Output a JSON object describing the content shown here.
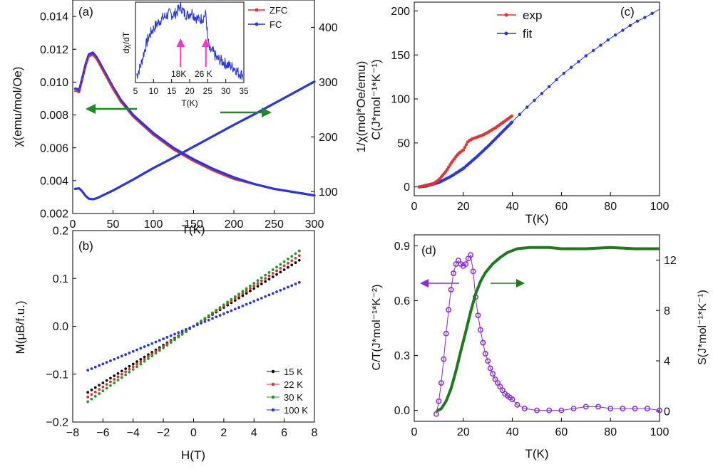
{
  "colors": {
    "zfc": "#e8302f",
    "fc": "#2a36e6",
    "arrow": "#1f8a1f",
    "pink": "#ff33cc",
    "exp": "#e8302f",
    "fit": "#2a36e6",
    "m15": "#111111",
    "m22": "#e8302f",
    "m30": "#1f9a1f",
    "m100": "#2a36e6",
    "ct": "#8a2be2",
    "s": "#1f7a1f"
  },
  "chart_data": [
    {
      "id": "a",
      "type": "line",
      "panel_label": "(a)",
      "xlabel": "T(K)",
      "ylabel": "χ(emu/mol/Oe)",
      "y2label": "1/χ(mol*Oe/emu)",
      "xlim": [
        0,
        300
      ],
      "ylim": [
        0.002,
        0.015
      ],
      "y2lim": [
        60,
        450
      ],
      "xticks": [
        "0",
        "50",
        "100",
        "150",
        "200",
        "250",
        "300"
      ],
      "yticks": [
        "0.002",
        "0.004",
        "0.006",
        "0.008",
        "0.010",
        "0.012",
        "0.014"
      ],
      "y2ticks": [
        "100",
        "200",
        "300",
        "400"
      ],
      "legend": [
        "ZFC",
        "FC"
      ],
      "series": [
        {
          "name": "ZFC",
          "axis": "left",
          "x": [
            5,
            8,
            12,
            16,
            20,
            25,
            30,
            40,
            50,
            60,
            75,
            100,
            125,
            150,
            175,
            200,
            225,
            250,
            275,
            300
          ],
          "values": [
            0.0095,
            0.0094,
            0.0102,
            0.011,
            0.0116,
            0.0117,
            0.0114,
            0.0105,
            0.0096,
            0.0088,
            0.0079,
            0.0068,
            0.0059,
            0.0052,
            0.0046,
            0.0041,
            0.0038,
            0.0035,
            0.0033,
            0.0031
          ]
        },
        {
          "name": "FC",
          "axis": "left",
          "x": [
            5,
            8,
            12,
            16,
            20,
            25,
            30,
            40,
            50,
            60,
            75,
            100,
            125,
            150,
            175,
            200,
            225,
            250,
            275,
            300
          ],
          "values": [
            0.0096,
            0.0095,
            0.0103,
            0.0111,
            0.0117,
            0.0118,
            0.0115,
            0.0106,
            0.0097,
            0.0089,
            0.008,
            0.0069,
            0.006,
            0.0053,
            0.0047,
            0.0042,
            0.0038,
            0.0035,
            0.0033,
            0.0031
          ]
        },
        {
          "name": "1/χ",
          "axis": "right",
          "x": [
            3,
            8,
            12,
            16,
            20,
            25,
            30,
            50,
            75,
            100,
            125,
            150,
            175,
            200,
            225,
            250,
            275,
            300
          ],
          "values": [
            105,
            106,
            100,
            92,
            87,
            86,
            88,
            102,
            122,
            143,
            162,
            182,
            202,
            222,
            241,
            261,
            281,
            301
          ]
        }
      ],
      "annotations": [
        {
          "text": "←",
          "direction": "left",
          "x": 25,
          "y": 0.0074,
          "to_x": 95
        },
        {
          "text": "→",
          "direction": "right",
          "x": 275,
          "y": 0.0074,
          "to_x": 170
        }
      ]
    },
    {
      "id": "a_inset",
      "type": "line",
      "xlabel": "T(K)",
      "ylabel": "dχ/dT",
      "xlim": [
        5,
        35
      ],
      "ylim": [
        0,
        1
      ],
      "xticks": [
        "5",
        "10",
        "15",
        "20",
        "25",
        "30",
        "35"
      ],
      "marker_labels": [
        "18K",
        "26 K"
      ],
      "marker_x": [
        17.5,
        24.5
      ],
      "series": [
        {
          "name": "dχ/dT",
          "x": [
            5.5,
            6.5,
            7.5,
            8.5,
            9.5,
            10.5,
            11.5,
            12.5,
            13.5,
            14.5,
            15.5,
            16.5,
            17.5,
            18.5,
            19.5,
            20.5,
            21.5,
            22.5,
            23.5,
            24.5,
            25.0,
            25.5,
            26.5,
            27.5,
            28.5,
            29.5,
            30.5,
            31.5,
            32.5,
            33.5,
            34.5
          ],
          "values": [
            0.1,
            0.22,
            0.4,
            0.55,
            0.64,
            0.7,
            0.76,
            0.8,
            0.83,
            0.86,
            0.84,
            0.88,
            0.95,
            0.86,
            0.84,
            0.88,
            0.82,
            0.78,
            0.8,
            0.85,
            0.55,
            0.4,
            0.38,
            0.3,
            0.28,
            0.25,
            0.22,
            0.2,
            0.18,
            0.12,
            0.1
          ]
        }
      ]
    },
    {
      "id": "b",
      "type": "scatter",
      "panel_label": "(b)",
      "xlabel": "H(T)",
      "ylabel": "M(μB/f.u.)",
      "xlim": [
        -8,
        8
      ],
      "ylim": [
        -0.2,
        0.2
      ],
      "xticks": [
        "−8",
        "−6",
        "−4",
        "−2",
        "0",
        "2",
        "4",
        "6",
        "8"
      ],
      "yticks": [
        "−0.2",
        "−0.1",
        "0.0",
        "0.1",
        "0.2"
      ],
      "legend": [
        "15 K",
        "22 K",
        "30 K",
        "100 K"
      ],
      "series": [
        {
          "name": "15 K",
          "slope": 0.0197,
          "xrange": [
            -7,
            7
          ]
        },
        {
          "name": "22 K",
          "slope": 0.0211,
          "xrange": [
            -7,
            7
          ]
        },
        {
          "name": "30 K",
          "slope": 0.0225,
          "xrange": [
            -7,
            7
          ]
        },
        {
          "name": "100 K",
          "slope": 0.0131,
          "xrange": [
            -7,
            7
          ]
        }
      ]
    },
    {
      "id": "c",
      "type": "line",
      "panel_label": "(c)",
      "xlabel": "T(K)",
      "ylabel": "C(J*mol⁻¹*K⁻¹)",
      "xlim": [
        0,
        100
      ],
      "ylim": [
        -10,
        210
      ],
      "xticks": [
        "0",
        "20",
        "40",
        "60",
        "80",
        "100"
      ],
      "yticks": [
        "0",
        "50",
        "100",
        "150",
        "200"
      ],
      "legend": [
        "exp",
        "fit"
      ],
      "series": [
        {
          "name": "fit",
          "x": [
            2,
            5,
            10,
            15,
            20,
            25,
            30,
            35,
            40,
            45,
            50,
            55,
            60,
            65,
            70,
            75,
            80,
            85,
            90,
            95,
            100
          ],
          "values": [
            0,
            1,
            5,
            12,
            21,
            33,
            46,
            60,
            74,
            88,
            101,
            114,
            127,
            138,
            149,
            159,
            169,
            178,
            187,
            194,
            202
          ]
        },
        {
          "name": "exp",
          "x": [
            2,
            5,
            8,
            10,
            13,
            15,
            18,
            20,
            22,
            24,
            26,
            28,
            30,
            33,
            36,
            40
          ],
          "values": [
            0,
            2,
            4,
            8,
            18,
            27,
            38,
            42,
            52,
            55,
            57,
            59,
            62,
            67,
            73,
            81
          ]
        }
      ]
    },
    {
      "id": "d",
      "type": "line",
      "panel_label": "(d)",
      "xlabel": "T(K)",
      "ylabel": "C/T(J*mol⁻¹*K⁻²)",
      "y2label": "S(J*mol⁻¹*K⁻¹)",
      "xlim": [
        0,
        100
      ],
      "ylim": [
        -0.06,
        0.96
      ],
      "y2lim": [
        -0.8,
        14
      ],
      "xticks": [
        "0",
        "20",
        "40",
        "60",
        "80",
        "100"
      ],
      "yticks": [
        "0.0",
        "0.3",
        "0.6",
        "0.9"
      ],
      "y2ticks": [
        "0",
        "4",
        "8",
        "12"
      ],
      "series": [
        {
          "name": "C/T",
          "axis": "left",
          "x": [
            9,
            10,
            11,
            12,
            13,
            14,
            15,
            16,
            17,
            18,
            19,
            20,
            21,
            22,
            23,
            24,
            25,
            26,
            27,
            28,
            29,
            30,
            31,
            32,
            33,
            34,
            35,
            36,
            37,
            38,
            39,
            40,
            42,
            45,
            50,
            55,
            60,
            65,
            70,
            75,
            80,
            85,
            90,
            95,
            100
          ],
          "values": [
            -0.02,
            0.05,
            0.15,
            0.28,
            0.42,
            0.55,
            0.66,
            0.75,
            0.8,
            0.82,
            0.8,
            0.79,
            0.8,
            0.83,
            0.85,
            0.76,
            0.62,
            0.52,
            0.44,
            0.37,
            0.31,
            0.27,
            0.23,
            0.2,
            0.17,
            0.15,
            0.13,
            0.11,
            0.09,
            0.08,
            0.07,
            0.06,
            0.03,
            0.01,
            0.0,
            0.0,
            0.0,
            0.01,
            0.02,
            0.02,
            0.01,
            0.01,
            0.01,
            0.01,
            0.0
          ]
        },
        {
          "name": "S",
          "axis": "right",
          "x": [
            9,
            11,
            13,
            15,
            17,
            19,
            21,
            23,
            25,
            27,
            29,
            32,
            35,
            38,
            42,
            47,
            55,
            60,
            70,
            80,
            90,
            100
          ],
          "values": [
            0,
            0.2,
            0.8,
            1.8,
            3.2,
            4.8,
            6.3,
            7.9,
            9.3,
            10.3,
            11.0,
            11.7,
            12.2,
            12.6,
            12.9,
            13.0,
            13.0,
            12.9,
            12.9,
            13.0,
            12.9,
            12.9
          ]
        }
      ]
    }
  ]
}
